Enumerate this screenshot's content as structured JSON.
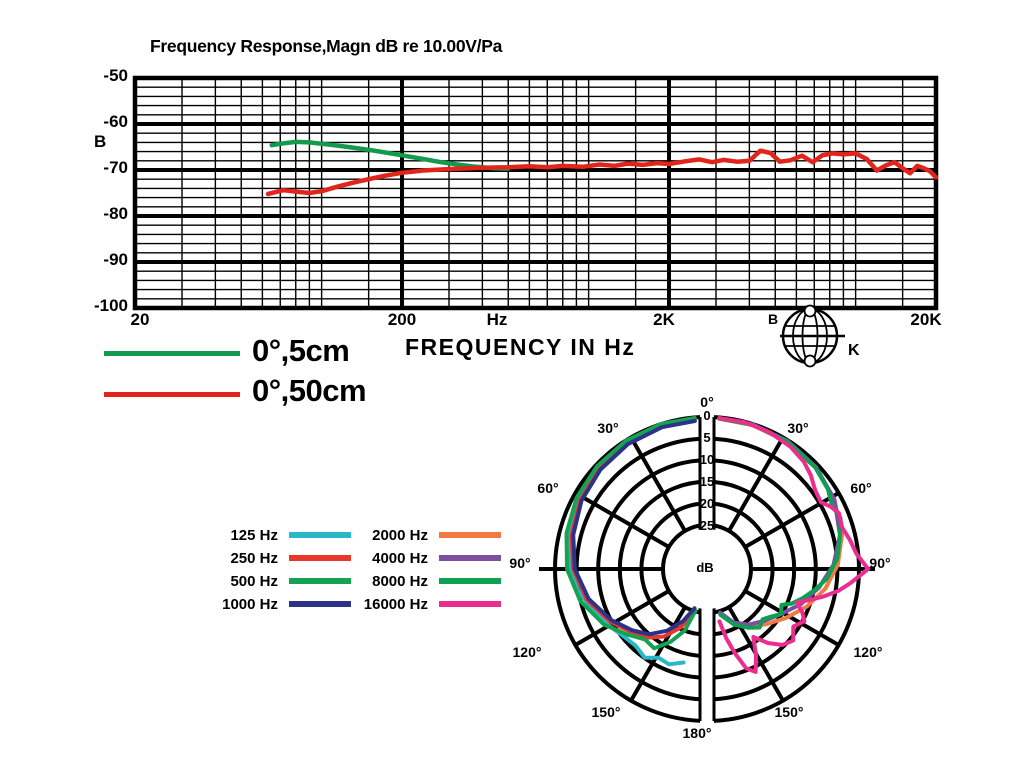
{
  "freq_chart": {
    "title": "Frequency Response,Magn dB re 10.00V/Pa",
    "y_axis_label": "B",
    "ytick_labels": [
      "-50",
      "-60",
      "-70",
      "-80",
      "-90",
      "-100"
    ],
    "xtick_labels": [
      "20",
      "200",
      "2K",
      "20K"
    ],
    "x_unit_label": "Hz",
    "legend": [
      {
        "label": "0°,5cm",
        "color": "#149a4e"
      },
      {
        "label": "0°,50cm",
        "color": "#e1251b"
      }
    ],
    "legend_note": "FREQUENCY IN Hz",
    "logo": {
      "left": "B",
      "right": "K"
    }
  },
  "polar": {
    "top_label": "0°",
    "bottom_label": "180°",
    "center_label": "dB",
    "radial_labels": [
      "0",
      "5",
      "10",
      "15",
      "20",
      "25"
    ],
    "left_angle_labels": [
      "30°",
      "60°",
      "90°",
      "120°",
      "150°"
    ],
    "right_angle_labels": [
      "30°",
      "60°",
      "90°",
      "120°",
      "150°"
    ],
    "legend_left": [
      {
        "label": "125 Hz",
        "color": "#29b8c6"
      },
      {
        "label": "250 Hz",
        "color": "#e8372c"
      },
      {
        "label": "500 Hz",
        "color": "#16a253"
      },
      {
        "label": "1000 Hz",
        "color": "#2b3287"
      }
    ],
    "legend_right": [
      {
        "label": "2000 Hz",
        "color": "#ef7b41"
      },
      {
        "label": "4000 Hz",
        "color": "#7c4fa0"
      },
      {
        "label": "8000 Hz",
        "color": "#0ba052"
      },
      {
        "label": "16000 Hz",
        "color": "#ec2c8f"
      }
    ]
  },
  "chart_data": [
    {
      "type": "line",
      "title": "Frequency Response,Magn dB re 10.00V/Pa",
      "xlabel": "FREQUENCY IN Hz",
      "ylabel": "dB re 10.00V/Pa",
      "x_scale": "log",
      "xlim": [
        20,
        20000
      ],
      "ylim": [
        -100,
        -50
      ],
      "x_major_ticks": [
        20,
        200,
        2000,
        20000
      ],
      "y_major_ticks": [
        -50,
        -60,
        -70,
        -80,
        -90,
        -100
      ],
      "y_minor_step": 2,
      "x_minor_multipliers": [
        1.5,
        2,
        2.5,
        3,
        3.5,
        4,
        4.5,
        5,
        7.5
      ],
      "grid": true,
      "legend_position": "below-left",
      "series": [
        {
          "name": "0°,5cm",
          "color": "#149a4e",
          "points": [
            [
              65,
              -64.6
            ],
            [
              72,
              -64.2
            ],
            [
              80,
              -63.9
            ],
            [
              90,
              -64.0
            ],
            [
              100,
              -64.3
            ],
            [
              115,
              -64.7
            ],
            [
              130,
              -65.1
            ],
            [
              150,
              -65.6
            ],
            [
              170,
              -66.1
            ],
            [
              200,
              -66.8
            ],
            [
              240,
              -67.6
            ],
            [
              280,
              -68.3
            ],
            [
              330,
              -68.9
            ],
            [
              380,
              -69.3
            ],
            [
              440,
              -69.6
            ],
            [
              500,
              -69.7
            ]
          ]
        },
        {
          "name": "0°,50cm",
          "color": "#e1251b",
          "points": [
            [
              63,
              -75.2
            ],
            [
              72,
              -74.4
            ],
            [
              80,
              -74.7
            ],
            [
              90,
              -75.0
            ],
            [
              100,
              -74.6
            ],
            [
              115,
              -73.6
            ],
            [
              130,
              -72.8
            ],
            [
              150,
              -72.0
            ],
            [
              170,
              -71.3
            ],
            [
              200,
              -70.6
            ],
            [
              240,
              -70.1
            ],
            [
              280,
              -69.9
            ],
            [
              330,
              -69.7
            ],
            [
              400,
              -69.5
            ],
            [
              500,
              -69.4
            ],
            [
              600,
              -69.2
            ],
            [
              700,
              -69.4
            ],
            [
              800,
              -69.1
            ],
            [
              950,
              -69.3
            ],
            [
              1100,
              -68.8
            ],
            [
              1250,
              -69.1
            ],
            [
              1400,
              -68.6
            ],
            [
              1600,
              -68.9
            ],
            [
              1800,
              -68.5
            ],
            [
              2000,
              -68.7
            ],
            [
              2300,
              -68.1
            ],
            [
              2600,
              -67.7
            ],
            [
              2900,
              -68.3
            ],
            [
              3200,
              -67.8
            ],
            [
              3600,
              -68.2
            ],
            [
              4000,
              -68.0
            ],
            [
              4400,
              -65.8
            ],
            [
              4800,
              -66.3
            ],
            [
              5200,
              -68.2
            ],
            [
              5700,
              -67.9
            ],
            [
              6300,
              -66.9
            ],
            [
              6900,
              -68.3
            ],
            [
              7500,
              -66.8
            ],
            [
              8200,
              -66.4
            ],
            [
              9000,
              -66.6
            ],
            [
              10000,
              -66.4
            ],
            [
              11000,
              -67.6
            ],
            [
              12000,
              -70.1
            ],
            [
              13000,
              -69.0
            ],
            [
              14000,
              -68.3
            ],
            [
              15000,
              -69.6
            ],
            [
              16000,
              -70.7
            ],
            [
              17000,
              -69.1
            ],
            [
              18000,
              -69.6
            ],
            [
              19000,
              -70.3
            ],
            [
              20000,
              -71.6
            ]
          ]
        }
      ]
    },
    {
      "type": "polar",
      "radial_unit": "dB",
      "radial_ticks": [
        0,
        5,
        10,
        15,
        20,
        25
      ],
      "angle_ticks_deg": [
        0,
        30,
        60,
        90,
        120,
        150,
        180
      ],
      "series": [
        {
          "name": "125 Hz",
          "color": "#29b8c6",
          "side": "left",
          "points_deg_db": [
            [
              2,
              0.3
            ],
            [
              15,
              0.8
            ],
            [
              30,
              1.5
            ],
            [
              45,
              2.2
            ],
            [
              60,
              3.0
            ],
            [
              75,
              4.0
            ],
            [
              90,
              5.0
            ],
            [
              100,
              6.5
            ],
            [
              110,
              8.5
            ],
            [
              120,
              10.0
            ],
            [
              130,
              11.5
            ],
            [
              140,
              12.0
            ],
            [
              148,
              11.0
            ],
            [
              155,
              12.5
            ],
            [
              162,
              12.0
            ],
            [
              170,
              13.2
            ]
          ]
        },
        {
          "name": "250 Hz",
          "color": "#e8372c",
          "side": "left",
          "points_deg_db": [
            [
              2,
              0.8
            ],
            [
              15,
              1.0
            ],
            [
              30,
              1.6
            ],
            [
              45,
              2.4
            ],
            [
              60,
              3.2
            ],
            [
              75,
              4.4
            ],
            [
              90,
              5.8
            ],
            [
              105,
              8.0
            ],
            [
              120,
              11.0
            ],
            [
              132,
              13.5
            ],
            [
              142,
              15.0
            ],
            [
              152,
              17.5
            ],
            [
              162,
              21.0
            ],
            [
              172,
              25.5
            ]
          ]
        },
        {
          "name": "500 Hz",
          "color": "#16a253",
          "side": "left",
          "points_deg_db": [
            [
              2,
              0.2
            ],
            [
              15,
              0.4
            ],
            [
              30,
              0.9
            ],
            [
              45,
              1.5
            ],
            [
              60,
              2.2
            ],
            [
              75,
              3.2
            ],
            [
              90,
              4.4
            ],
            [
              105,
              6.5
            ],
            [
              120,
              9.5
            ],
            [
              132,
              12.5
            ],
            [
              142,
              14.5
            ],
            [
              150,
              14.0
            ],
            [
              158,
              17.0
            ],
            [
              166,
              20.5
            ],
            [
              174,
              25.5
            ]
          ]
        },
        {
          "name": "1000 Hz",
          "color": "#2b3287",
          "side": "left",
          "points_deg_db": [
            [
              2,
              0.9
            ],
            [
              15,
              1.2
            ],
            [
              30,
              1.8
            ],
            [
              45,
              2.6
            ],
            [
              60,
              3.5
            ],
            [
              75,
              4.8
            ],
            [
              90,
              6.2
            ],
            [
              105,
              8.5
            ],
            [
              120,
              11.5
            ],
            [
              132,
              14.0
            ],
            [
              142,
              16.0
            ],
            [
              152,
              19.0
            ],
            [
              162,
              22.5
            ],
            [
              172,
              26.0
            ]
          ]
        },
        {
          "name": "2000 Hz",
          "color": "#ef7b41",
          "side": "right",
          "points_deg_db": [
            [
              2,
              0.4
            ],
            [
              15,
              0.7
            ],
            [
              30,
              1.2
            ],
            [
              45,
              2.0
            ],
            [
              60,
              3.0
            ],
            [
              75,
              4.5
            ],
            [
              88,
              6.5
            ],
            [
              100,
              9.0
            ],
            [
              112,
              12.0
            ],
            [
              124,
              15.0
            ],
            [
              136,
              17.5
            ],
            [
              148,
              19.5
            ],
            [
              160,
              21.5
            ],
            [
              172,
              24.5
            ]
          ]
        },
        {
          "name": "4000 Hz",
          "color": "#7c4fa0",
          "side": "right",
          "points_deg_db": [
            [
              2,
              0.3
            ],
            [
              15,
              0.5
            ],
            [
              30,
              1.0
            ],
            [
              45,
              1.8
            ],
            [
              60,
              3.0
            ],
            [
              75,
              5.0
            ],
            [
              88,
              7.5
            ],
            [
              100,
              10.5
            ],
            [
              112,
              13.5
            ],
            [
              124,
              16.5
            ],
            [
              136,
              18.5
            ],
            [
              148,
              20.0
            ],
            [
              160,
              22.0
            ],
            [
              172,
              25.0
            ]
          ]
        },
        {
          "name": "8000 Hz",
          "color": "#0ba052",
          "side": "right",
          "points_deg_db": [
            [
              2,
              0.3
            ],
            [
              15,
              0.6
            ],
            [
              30,
              1.1
            ],
            [
              45,
              2.0
            ],
            [
              55,
              3.0
            ],
            [
              62,
              4.2
            ],
            [
              68,
              3.6
            ],
            [
              75,
              5.0
            ],
            [
              85,
              6.5
            ],
            [
              95,
              9.0
            ],
            [
              102,
              11.5
            ],
            [
              108,
              13.5
            ],
            [
              114,
              15.5
            ],
            [
              118,
              17.5
            ],
            [
              124,
              16.5
            ],
            [
              130,
              18.0
            ],
            [
              136,
              19.0
            ],
            [
              142,
              18.0
            ],
            [
              150,
              19.5
            ],
            [
              160,
              21.5
            ],
            [
              172,
              24.5
            ]
          ]
        },
        {
          "name": "16000 Hz",
          "color": "#ec2c8f",
          "side": "right",
          "points_deg_db": [
            [
              2,
              0.2
            ],
            [
              12,
              0.5
            ],
            [
              22,
              1.0
            ],
            [
              32,
              1.8
            ],
            [
              40,
              2.8
            ],
            [
              46,
              4.0
            ],
            [
              52,
              5.5
            ],
            [
              58,
              6.0
            ],
            [
              62,
              4.5
            ],
            [
              66,
              3.5
            ],
            [
              72,
              4.0
            ],
            [
              78,
              3.0
            ],
            [
              84,
              2.0
            ],
            [
              90,
              -0.5
            ],
            [
              96,
              3.5
            ],
            [
              100,
              6.0
            ],
            [
              104,
              9.0
            ],
            [
              108,
              12.0
            ],
            [
              112,
              14.5
            ],
            [
              116,
              12.5
            ],
            [
              120,
              11.0
            ],
            [
              126,
              12.5
            ],
            [
              132,
              10.5
            ],
            [
              138,
              11.5
            ],
            [
              144,
              14.0
            ],
            [
              150,
              17.0
            ],
            [
              154,
              13.0
            ],
            [
              158,
              9.5
            ],
            [
              162,
              11.0
            ],
            [
              166,
              15.0
            ],
            [
              170,
              19.0
            ],
            [
              174,
              23.0
            ]
          ]
        }
      ]
    }
  ]
}
